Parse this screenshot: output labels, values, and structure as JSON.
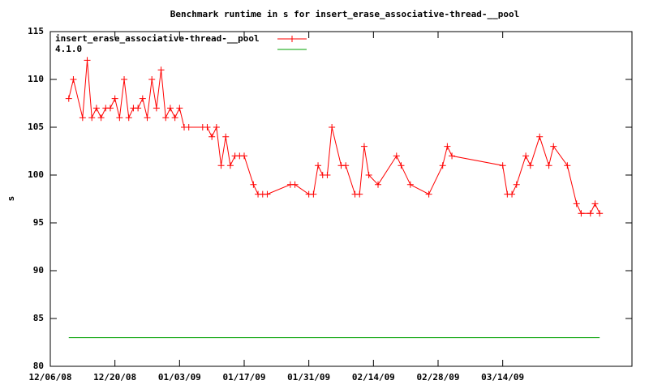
{
  "chart_data": {
    "type": "line",
    "title": "Benchmark runtime in s for insert_erase_associative-thread-__pool",
    "y_label": "s",
    "xlim": [
      "2008-12-06",
      "2009-04-11"
    ],
    "xticks": [
      {
        "value": "2008-12-06",
        "label": "12/06/08"
      },
      {
        "value": "2008-12-20",
        "label": "12/20/08"
      },
      {
        "value": "2009-01-03",
        "label": "01/03/09"
      },
      {
        "value": "2009-01-17",
        "label": "01/17/09"
      },
      {
        "value": "2009-01-31",
        "label": "01/31/09"
      },
      {
        "value": "2009-02-14",
        "label": "02/14/09"
      },
      {
        "value": "2009-02-28",
        "label": "02/28/09"
      },
      {
        "value": "2009-03-14",
        "label": "03/14/09"
      }
    ],
    "ylim": [
      80,
      115
    ],
    "yticks": [
      80,
      85,
      90,
      95,
      100,
      105,
      110,
      115
    ],
    "legend": "top-left",
    "series": [
      {
        "name": "insert_erase_associative-thread-__pool",
        "color": "#ff0000",
        "markers": true,
        "x": [
          "2008-12-10",
          "2008-12-11",
          "2008-12-13",
          "2008-12-14",
          "2008-12-15",
          "2008-12-16",
          "2008-12-17",
          "2008-12-18",
          "2008-12-19",
          "2008-12-20",
          "2008-12-21",
          "2008-12-22",
          "2008-12-23",
          "2008-12-24",
          "2008-12-25",
          "2008-12-26",
          "2008-12-27",
          "2008-12-28",
          "2008-12-29",
          "2008-12-30",
          "2008-12-31",
          "2009-01-01",
          "2009-01-02",
          "2009-01-03",
          "2009-01-04",
          "2009-01-05",
          "2009-01-08",
          "2009-01-09",
          "2009-01-10",
          "2009-01-11",
          "2009-01-12",
          "2009-01-13",
          "2009-01-14",
          "2009-01-15",
          "2009-01-16",
          "2009-01-17",
          "2009-01-19",
          "2009-01-20",
          "2009-01-21",
          "2009-01-22",
          "2009-01-27",
          "2009-01-28",
          "2009-01-31",
          "2009-02-01",
          "2009-02-02",
          "2009-02-03",
          "2009-02-04",
          "2009-02-05",
          "2009-02-07",
          "2009-02-08",
          "2009-02-10",
          "2009-02-11",
          "2009-02-12",
          "2009-02-13",
          "2009-02-15",
          "2009-02-19",
          "2009-02-20",
          "2009-02-22",
          "2009-02-26",
          "2009-03-01",
          "2009-03-02",
          "2009-03-03",
          "2009-03-14",
          "2009-03-15",
          "2009-03-16",
          "2009-03-17",
          "2009-03-19",
          "2009-03-20",
          "2009-03-22",
          "2009-03-24",
          "2009-03-25",
          "2009-03-28",
          "2009-03-30",
          "2009-03-31",
          "2009-04-02",
          "2009-04-03",
          "2009-04-04"
        ],
        "values": [
          108,
          110,
          106,
          112,
          106,
          107,
          106,
          107,
          107,
          108,
          106,
          110,
          106,
          107,
          107,
          108,
          106,
          110,
          107,
          111,
          106,
          107,
          106,
          107,
          105,
          105,
          105,
          105,
          104,
          105,
          101,
          104,
          101,
          102,
          102,
          102,
          99,
          98,
          98,
          98,
          99,
          99,
          98,
          98,
          101,
          100,
          100,
          105,
          101,
          101,
          98,
          98,
          103,
          100,
          99,
          102,
          101,
          99,
          98,
          101,
          103,
          102,
          101,
          98,
          98,
          99,
          102,
          101,
          104,
          101,
          103,
          101,
          97,
          96,
          96,
          97,
          96
        ]
      },
      {
        "name": "4.1.0",
        "color": "#00a000",
        "markers": false,
        "x": [
          "2008-12-10",
          "2009-04-04"
        ],
        "values": [
          83,
          83
        ]
      }
    ]
  }
}
